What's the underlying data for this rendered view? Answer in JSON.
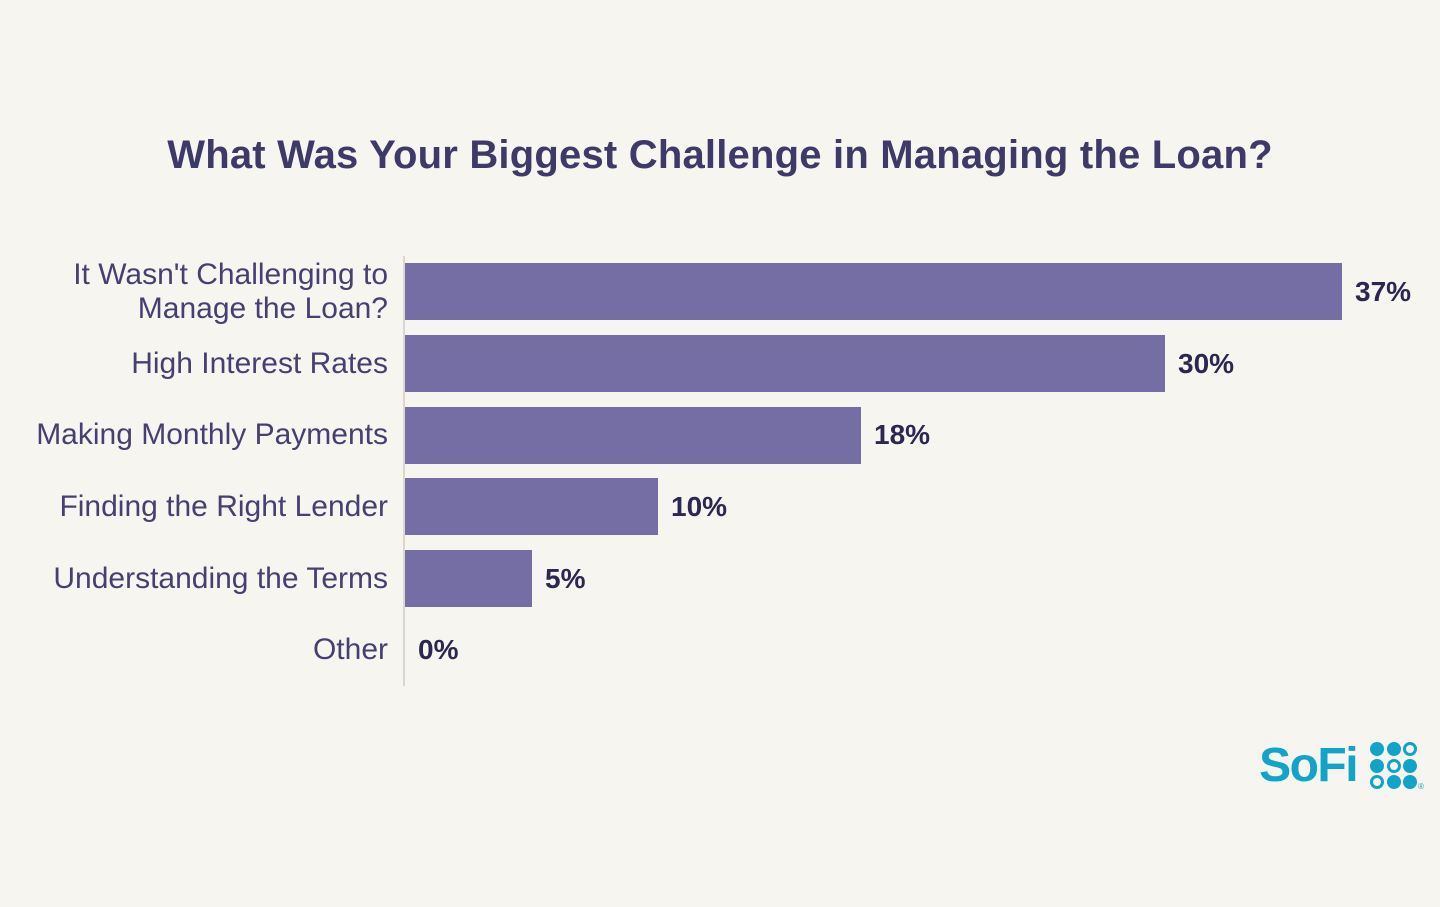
{
  "page": {
    "background_color": "#F7F5F0"
  },
  "chart_data": {
    "type": "bar",
    "orientation": "horizontal",
    "title": "What Was Your Biggest Challenge in Managing the Loan?",
    "categories": [
      "It Wasn't Challenging to Manage the Loan?",
      "High Interest Rates",
      "Making Monthly Payments",
      "Finding the Right Lender",
      "Understanding the Terms",
      "Other"
    ],
    "values": [
      37,
      30,
      18,
      10,
      5,
      0
    ],
    "value_labels": [
      "37%",
      "30%",
      "18%",
      "10%",
      "5%",
      "0%"
    ],
    "xlabel": "",
    "ylabel": "",
    "xlim": [
      0,
      37
    ],
    "grid": false,
    "legend": false,
    "data_labels_position": "end-of-bar",
    "colors": {
      "bar": "#756EA5",
      "category_label": "#45406F",
      "value_label": "#2B2750",
      "title": "#3E3A68",
      "axis_line": "#DBD7CF"
    }
  },
  "branding": {
    "logo_text": "SoFi",
    "logo_color": "#12A3C9",
    "registered_mark": "®",
    "dot_pattern": [
      [
        "filled",
        "filled",
        "ring"
      ],
      [
        "filled",
        "ring",
        "filled"
      ],
      [
        "ring",
        "filled",
        "filled"
      ]
    ]
  }
}
